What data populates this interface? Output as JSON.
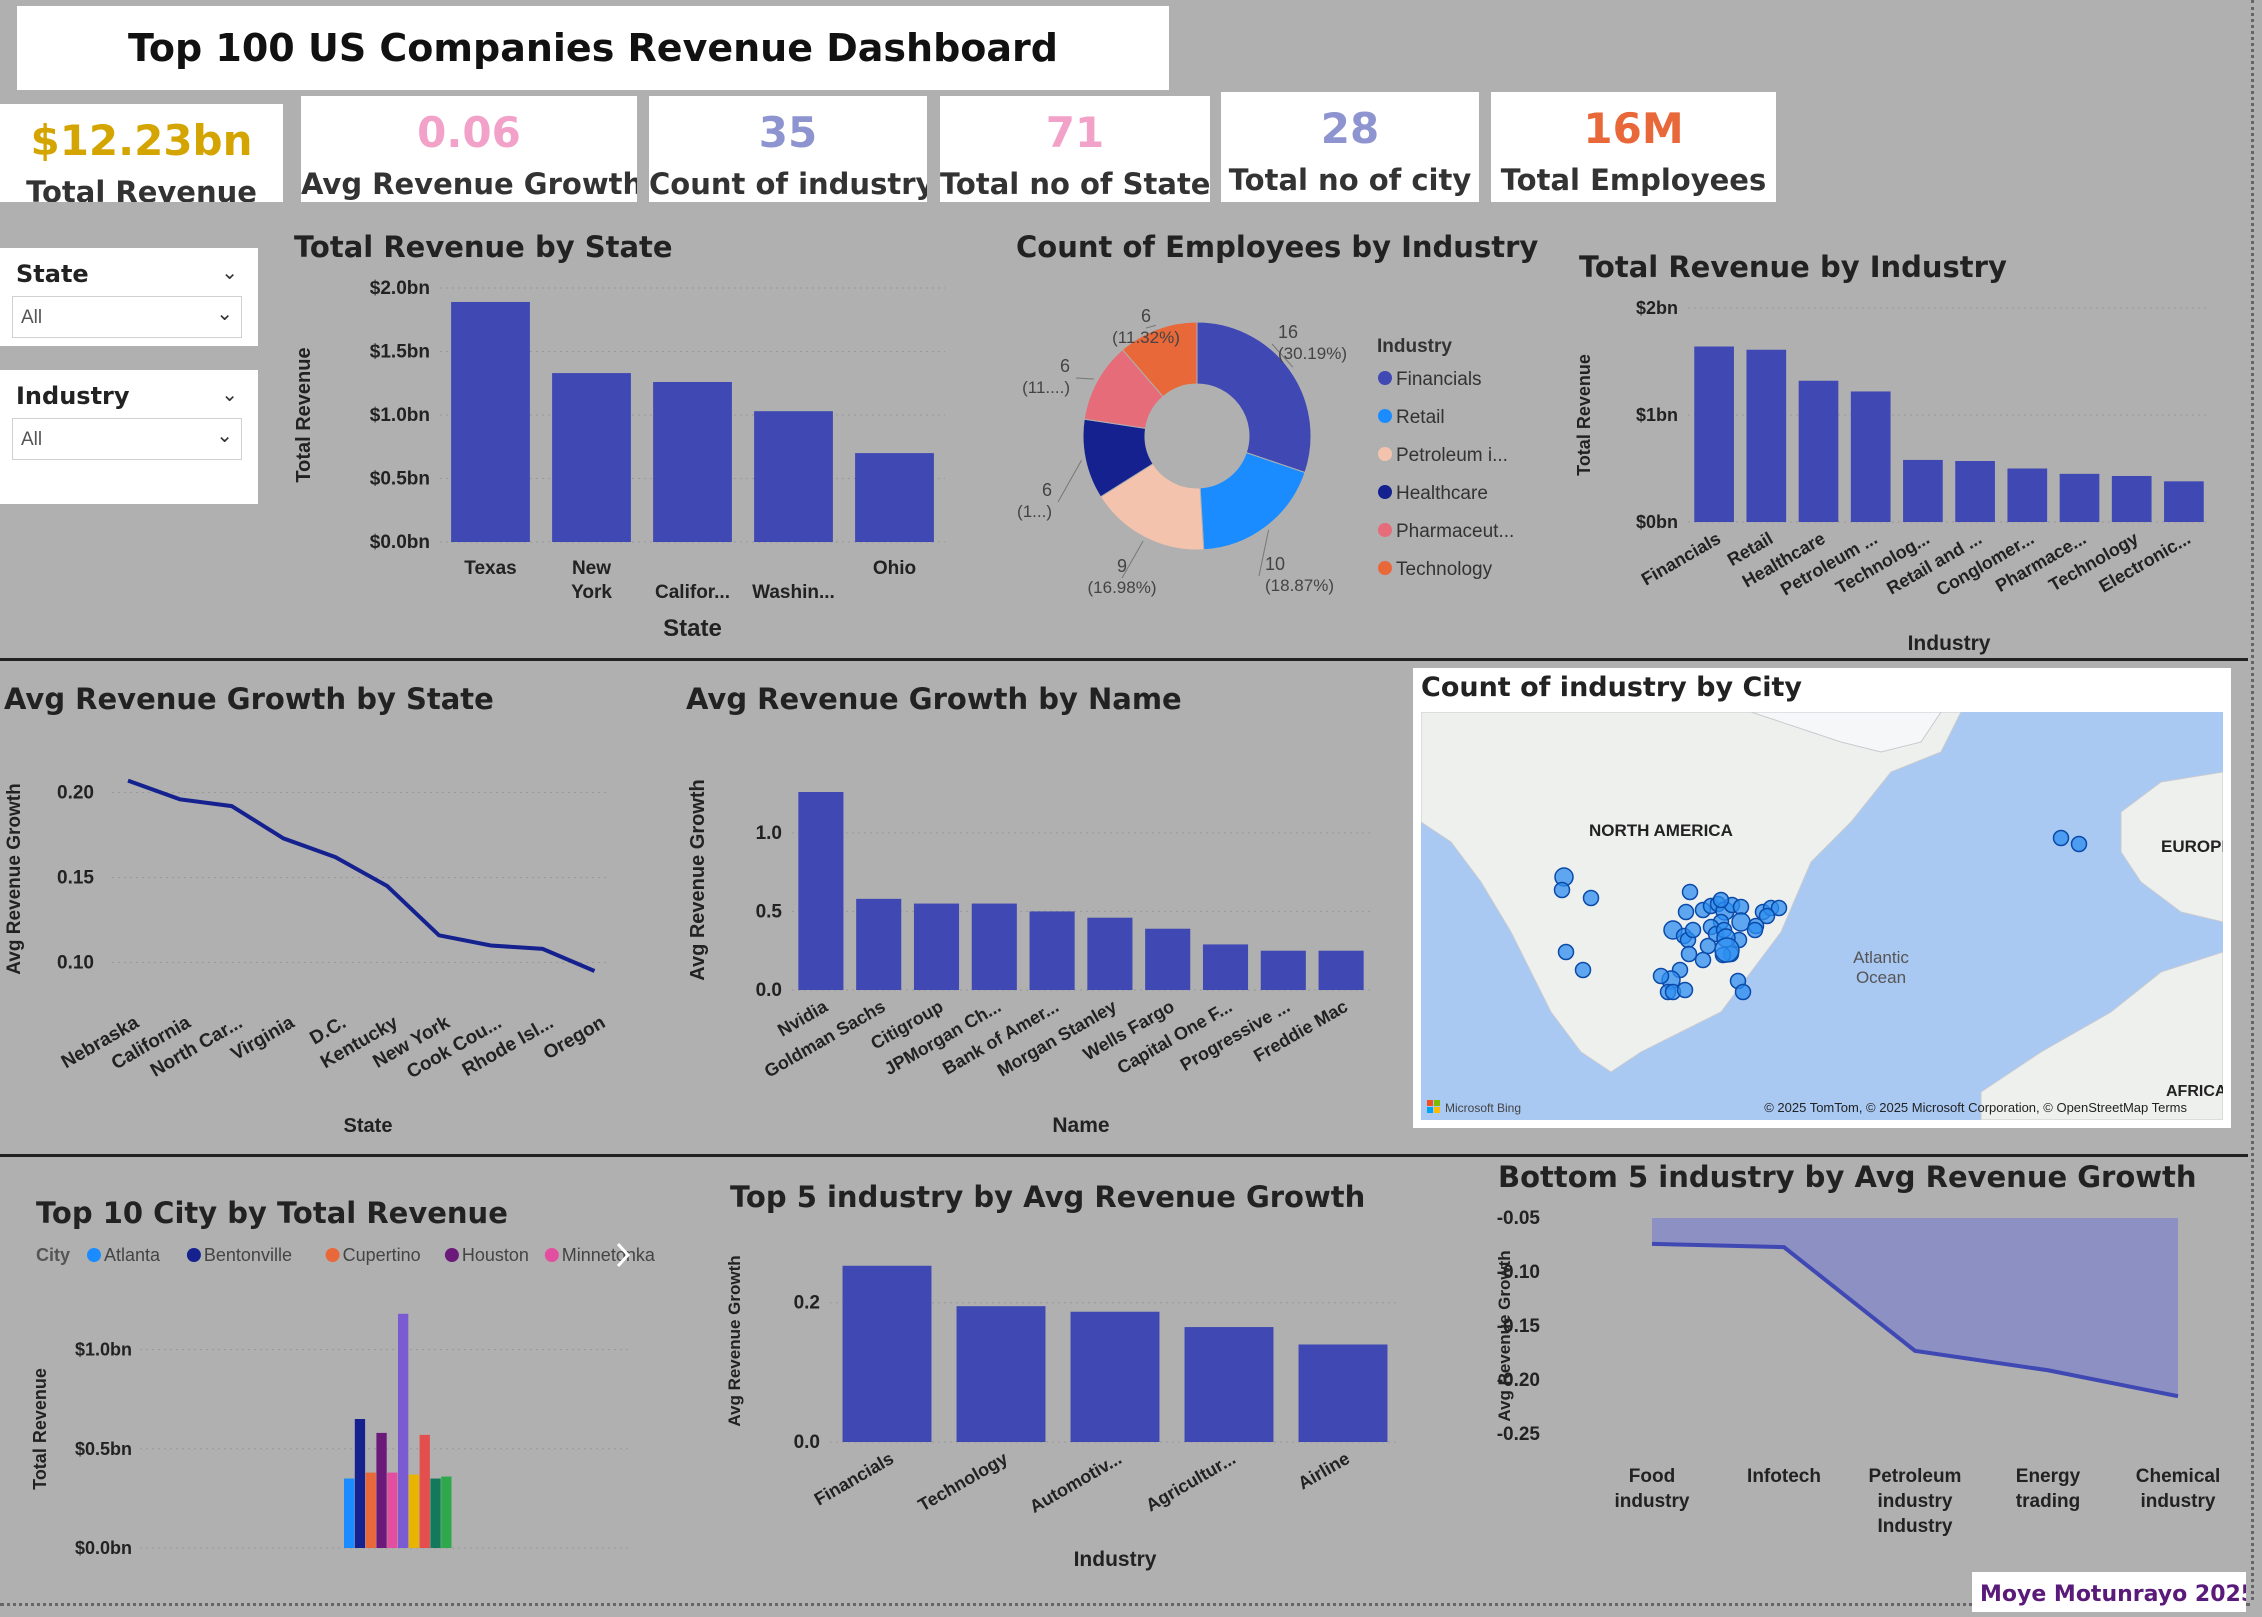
{
  "dashboard": {
    "title": "Top 100 US Companies Revenue Dashboard",
    "signature": "Moye Motunrayo 2025"
  },
  "kpis": [
    {
      "value": "$12.23bn",
      "label": "Total Revenue",
      "color": "#d4a500"
    },
    {
      "value": "0.06",
      "label": "Avg Revenue Growth",
      "color": "#f2a1c8"
    },
    {
      "value": "35",
      "label": "Count of industry",
      "color": "#8e94d0"
    },
    {
      "value": "71",
      "label": "Total no of State",
      "color": "#f2a1c8"
    },
    {
      "value": "28",
      "label": "Total no of city",
      "color": "#8e94d0"
    },
    {
      "value": "16M",
      "label": "Total Employees",
      "color": "#e8683a"
    }
  ],
  "slicers": [
    {
      "label": "State",
      "value": "All"
    },
    {
      "label": "Industry",
      "value": "All"
    }
  ],
  "map": {
    "title": "Count of industry by City",
    "labels": {
      "na": "NORTH AMERICA",
      "eu": "EUROPE",
      "atl1": "Atlantic",
      "atl2": "Ocean",
      "af": "AFRICA"
    },
    "attribution": "© 2025 TomTom, © 2025 Microsoft Corporation, © OpenStreetMap  Terms",
    "bing": "Microsoft Bing"
  },
  "chart_data": [
    {
      "id": "rev_state",
      "type": "bar",
      "title": "Total Revenue by State",
      "xlabel": "State",
      "ylabel": "Total Revenue",
      "categories": [
        "Texas",
        "New York",
        "Califor...",
        "Washin...",
        "Ohio"
      ],
      "values": [
        1.89,
        1.33,
        1.26,
        1.03,
        0.7
      ],
      "ylim": [
        0,
        2.0
      ],
      "yticks": [
        {
          "v": 0,
          "label": "$0.0bn"
        },
        {
          "v": 0.5,
          "label": "$0.5bn"
        },
        {
          "v": 1.0,
          "label": "$1.0bn"
        },
        {
          "v": 1.5,
          "label": "$1.5bn"
        },
        {
          "v": 2.0,
          "label": "$2.0bn"
        }
      ]
    },
    {
      "id": "emp_industry",
      "type": "pie",
      "title": "Count of Employees by Industry",
      "legend_title": "Industry",
      "slices": [
        {
          "name": "Financials",
          "value": 16,
          "pct": "(30.19%)",
          "color": "#3f48b3"
        },
        {
          "name": "Retail",
          "value": 10,
          "pct": "(18.87%)",
          "color": "#1a8cff"
        },
        {
          "name": "Petroleum i...",
          "value": 9,
          "pct": "(16.98%)",
          "color": "#f4c3ad"
        },
        {
          "name": "Healthcare",
          "value": 6,
          "pct": "(1...)",
          "color": "#14218f"
        },
        {
          "name": "Pharmaceut...",
          "value": 6,
          "pct": "(11....)",
          "color": "#e66c79"
        },
        {
          "name": "Technology",
          "value": 6,
          "pct": "(11.32%)",
          "color": "#e8683a"
        }
      ]
    },
    {
      "id": "rev_industry",
      "type": "bar",
      "title": "Total Revenue by Industry",
      "xlabel": "Industry",
      "ylabel": "Total Revenue",
      "categories": [
        "Financials",
        "Retail",
        "Healthcare",
        "Petroleum ...",
        "Technolog...",
        "Retail and ...",
        "Conglomer...",
        "Pharmace...",
        "Technology",
        "Electronic..."
      ],
      "values": [
        1.64,
        1.61,
        1.32,
        1.22,
        0.58,
        0.57,
        0.5,
        0.45,
        0.43,
        0.38
      ],
      "ylim": [
        0,
        2
      ],
      "yticks": [
        {
          "v": 0,
          "label": "$0bn"
        },
        {
          "v": 1,
          "label": "$1bn"
        },
        {
          "v": 2,
          "label": "$2bn"
        }
      ]
    },
    {
      "id": "growth_state",
      "type": "line",
      "title": "Avg Revenue Growth by State",
      "xlabel": "State",
      "ylabel": "Avg Revenue Growth",
      "categories": [
        "Nebraska",
        "California",
        "North Car...",
        "Virginia",
        "D.C.",
        "Kentucky",
        "New York",
        "Cook Cou...",
        "Rhode Isl...",
        "Oregon"
      ],
      "values": [
        0.207,
        0.196,
        0.192,
        0.173,
        0.162,
        0.145,
        0.116,
        0.11,
        0.108,
        0.095
      ],
      "ylim": [
        0.085,
        0.225
      ],
      "yticks": [
        {
          "v": 0.1,
          "label": "0.10"
        },
        {
          "v": 0.15,
          "label": "0.15"
        },
        {
          "v": 0.2,
          "label": "0.20"
        }
      ]
    },
    {
      "id": "growth_name",
      "type": "bar",
      "title": "Avg Revenue Growth by Name",
      "xlabel": "Name",
      "ylabel": "Avg Revenue Growth",
      "categories": [
        "Nvidia",
        "Goldman Sachs",
        "Citigroup",
        "JPMorgan Ch...",
        "Bank of Amer...",
        "Morgan Stanley",
        "Wells Fargo",
        "Capital One F...",
        "Progressive ...",
        "Freddie Mac"
      ],
      "values": [
        1.26,
        0.58,
        0.55,
        0.55,
        0.5,
        0.46,
        0.39,
        0.29,
        0.25,
        0.25
      ],
      "ylim": [
        0,
        1.4
      ],
      "yticks": [
        {
          "v": 0,
          "label": "0.0"
        },
        {
          "v": 0.5,
          "label": "0.5"
        },
        {
          "v": 1.0,
          "label": "1.0"
        }
      ]
    },
    {
      "id": "top_city",
      "type": "bar",
      "title": "Top 10 City by Total Revenue",
      "ylabel": "Total Revenue",
      "legend_title": "City",
      "legend": [
        {
          "name": "Atlanta",
          "color": "#1a8cff"
        },
        {
          "name": "Bentonville",
          "color": "#14218f"
        },
        {
          "name": "Cupertino",
          "color": "#e8683a"
        },
        {
          "name": "Houston",
          "color": "#6b1a7a"
        },
        {
          "name": "Minnetonka",
          "color": "#e34fa0"
        }
      ],
      "series": [
        {
          "name": "Atlanta",
          "values": [
            0.35
          ],
          "color": "#1a8cff"
        },
        {
          "name": "Bentonville",
          "values": [
            0.65
          ],
          "color": "#14218f"
        },
        {
          "name": "Cupertino",
          "values": [
            0.38
          ],
          "color": "#e8683a"
        },
        {
          "name": "Houston",
          "values": [
            0.58
          ],
          "color": "#6b1a7a"
        },
        {
          "name": "Minnetonka",
          "values": [
            0.38
          ],
          "color": "#e34fa0"
        },
        {
          "name": "",
          "values": [
            1.18
          ],
          "color": "#7a5bd1"
        },
        {
          "name": "",
          "values": [
            0.37
          ],
          "color": "#e8b400"
        },
        {
          "name": "",
          "values": [
            0.57
          ],
          "color": "#e34f4f"
        },
        {
          "name": "",
          "values": [
            0.35
          ],
          "color": "#127a5a"
        },
        {
          "name": "",
          "values": [
            0.36
          ],
          "color": "#2ea84a"
        }
      ],
      "ylim": [
        0,
        1.3
      ],
      "yticks": [
        {
          "v": 0,
          "label": "$0.0bn"
        },
        {
          "v": 0.5,
          "label": "$0.5bn"
        },
        {
          "v": 1.0,
          "label": "$1.0bn"
        }
      ]
    },
    {
      "id": "top5_industry",
      "type": "bar",
      "title": "Top 5 industry by Avg Revenue Growth",
      "xlabel": "Industry",
      "ylabel": "Avg Revenue Growth",
      "categories": [
        "Financials",
        "Technology",
        "Automotiv...",
        "Agricultur...",
        "Airline"
      ],
      "values": [
        0.253,
        0.195,
        0.187,
        0.165,
        0.14
      ],
      "ylim": [
        0,
        0.29
      ],
      "yticks": [
        {
          "v": 0,
          "label": "0.0"
        },
        {
          "v": 0.2,
          "label": "0.2"
        }
      ]
    },
    {
      "id": "bottom5_industry",
      "type": "area",
      "title": "Bottom 5 industry by Avg Revenue Growth",
      "ylabel": "Avg Revenue Growth",
      "categories": [
        "Food industry",
        "Infotech",
        "Petroleum industry Industry",
        "Energy trading",
        "Chemical industry"
      ],
      "values": [
        -0.074,
        -0.077,
        -0.173,
        -0.191,
        -0.215
      ],
      "ylim": [
        -0.25,
        -0.05
      ],
      "yticks": [
        {
          "v": -0.05,
          "label": "-0.05"
        },
        {
          "v": -0.1,
          "label": "-0.10"
        },
        {
          "v": -0.15,
          "label": "-0.15"
        },
        {
          "v": -0.2,
          "label": "-0.20"
        },
        {
          "v": -0.25,
          "label": "-0.25"
        }
      ]
    }
  ]
}
